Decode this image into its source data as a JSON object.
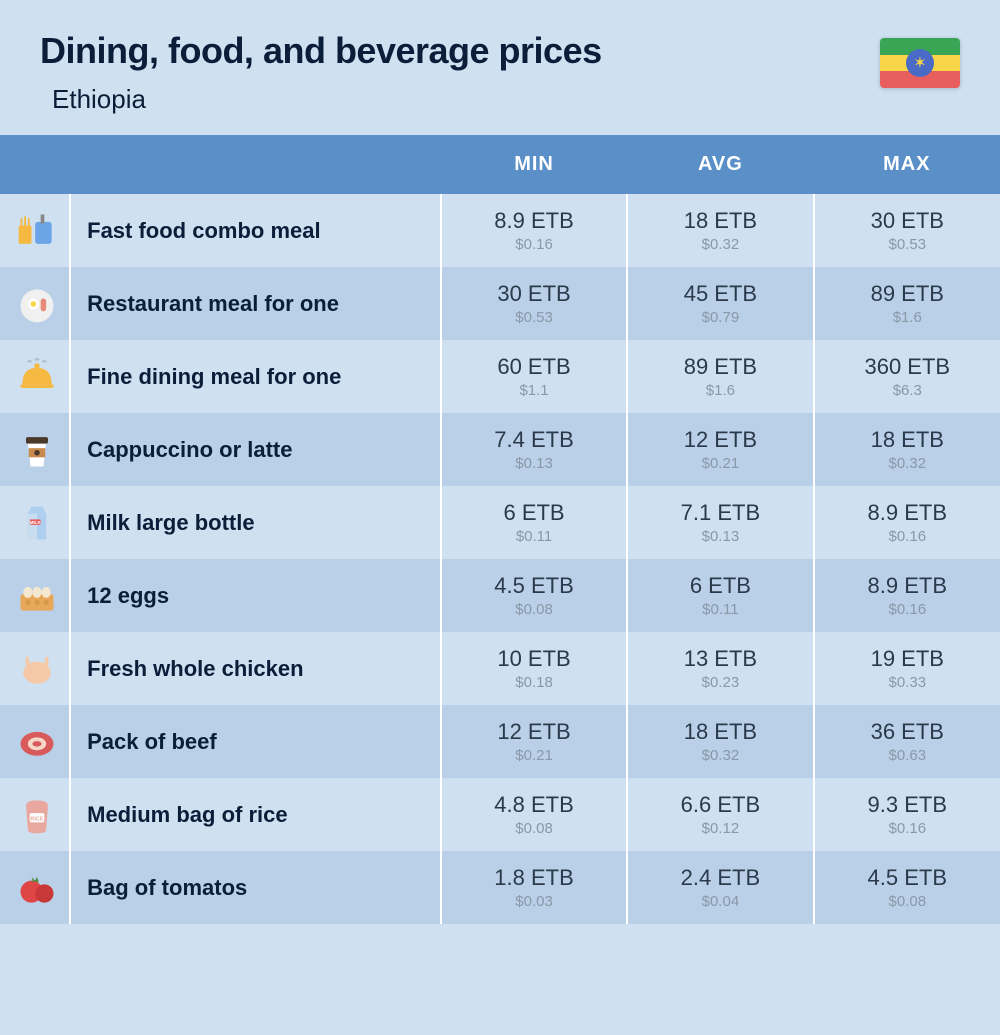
{
  "header": {
    "title": "Dining, food, and beverage prices",
    "country": "Ethiopia",
    "flag_colors": {
      "top": "#3aa655",
      "mid": "#f8d648",
      "bot": "#e85d5d",
      "circle": "#4a6bc5",
      "star": "#f8d648"
    }
  },
  "columns": [
    "MIN",
    "AVG",
    "MAX"
  ],
  "currency": "ETB",
  "usd_prefix": "$",
  "rows": [
    {
      "icon": "fastfood",
      "label": "Fast food combo meal",
      "min": {
        "p": "8.9",
        "u": "0.16"
      },
      "avg": {
        "p": "18",
        "u": "0.32"
      },
      "max": {
        "p": "30",
        "u": "0.53"
      }
    },
    {
      "icon": "meal",
      "label": "Restaurant meal for one",
      "min": {
        "p": "30",
        "u": "0.53"
      },
      "avg": {
        "p": "45",
        "u": "0.79"
      },
      "max": {
        "p": "89",
        "u": "1.6"
      }
    },
    {
      "icon": "finedine",
      "label": "Fine dining meal for one",
      "min": {
        "p": "60",
        "u": "1.1"
      },
      "avg": {
        "p": "89",
        "u": "1.6"
      },
      "max": {
        "p": "360",
        "u": "6.3"
      }
    },
    {
      "icon": "coffee",
      "label": "Cappuccino or latte",
      "min": {
        "p": "7.4",
        "u": "0.13"
      },
      "avg": {
        "p": "12",
        "u": "0.21"
      },
      "max": {
        "p": "18",
        "u": "0.32"
      }
    },
    {
      "icon": "milk",
      "label": "Milk large bottle",
      "min": {
        "p": "6",
        "u": "0.11"
      },
      "avg": {
        "p": "7.1",
        "u": "0.13"
      },
      "max": {
        "p": "8.9",
        "u": "0.16"
      }
    },
    {
      "icon": "eggs",
      "label": "12 eggs",
      "min": {
        "p": "4.5",
        "u": "0.08"
      },
      "avg": {
        "p": "6",
        "u": "0.11"
      },
      "max": {
        "p": "8.9",
        "u": "0.16"
      }
    },
    {
      "icon": "chicken",
      "label": "Fresh whole chicken",
      "min": {
        "p": "10",
        "u": "0.18"
      },
      "avg": {
        "p": "13",
        "u": "0.23"
      },
      "max": {
        "p": "19",
        "u": "0.33"
      }
    },
    {
      "icon": "beef",
      "label": "Pack of beef",
      "min": {
        "p": "12",
        "u": "0.21"
      },
      "avg": {
        "p": "18",
        "u": "0.32"
      },
      "max": {
        "p": "36",
        "u": "0.63"
      }
    },
    {
      "icon": "rice",
      "label": "Medium bag of rice",
      "min": {
        "p": "4.8",
        "u": "0.08"
      },
      "avg": {
        "p": "6.6",
        "u": "0.12"
      },
      "max": {
        "p": "9.3",
        "u": "0.16"
      }
    },
    {
      "icon": "tomato",
      "label": "Bag of tomatos",
      "min": {
        "p": "1.8",
        "u": "0.03"
      },
      "avg": {
        "p": "2.4",
        "u": "0.04"
      },
      "max": {
        "p": "4.5",
        "u": "0.08"
      }
    }
  ],
  "style": {
    "bg": "#cfe0f0",
    "row_alt": "#b9d0e8",
    "header_bg": "#5a8fc7",
    "header_fg": "#ffffff",
    "text_dark": "#0a1e3a",
    "price_main": "#2a3a4a",
    "price_sub": "#8a98a8",
    "title_fontsize": 36,
    "subtitle_fontsize": 26,
    "header_fontsize": 20,
    "label_fontsize": 22,
    "price_fontsize": 22,
    "sub_fontsize": 15
  },
  "icons": {
    "fastfood_colors": {
      "fries": "#f5b942",
      "cup": "#6ba5e8"
    },
    "meal_colors": {
      "plate": "#f0f0f0",
      "egg": "#f8d648",
      "bacon": "#e88a7a"
    },
    "finedine_colors": {
      "cloche": "#f5b942"
    },
    "coffee_colors": {
      "cup": "#fff",
      "lid": "#4a3a2a",
      "band": "#c78a4a"
    },
    "milk_colors": {
      "carton": "#aecff0",
      "label": "#e85d5d"
    },
    "eggs_colors": {
      "carton": "#e8a85a",
      "egg": "#f5e8d0"
    },
    "chicken_colors": {
      "body": "#f5c8a8"
    },
    "beef_colors": {
      "meat": "#d85a5a",
      "fat": "#f5d8c8"
    },
    "rice_colors": {
      "bag": "#e8a8a0",
      "label": "#fff"
    },
    "tomato_colors": {
      "body": "#e04545",
      "leaf": "#4a8a3a"
    }
  }
}
